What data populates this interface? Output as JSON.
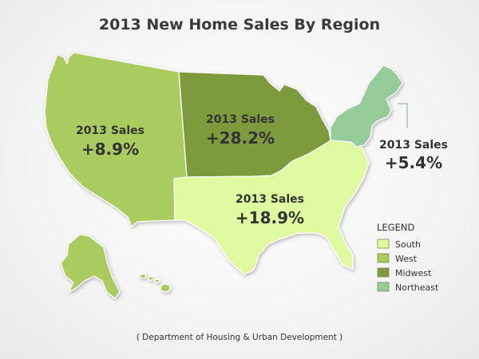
{
  "title": "2013 New Home Sales By Region",
  "source": "( Department of Housing & Urban Development )",
  "legend": {
    "title": "LEGEND",
    "items": [
      {
        "label": "South",
        "color": "#dffa9f"
      },
      {
        "label": "West",
        "color": "#a9cb5e"
      },
      {
        "label": "Midwest",
        "color": "#7d9a3e"
      },
      {
        "label": "Northeast",
        "color": "#97cb99"
      }
    ]
  },
  "regions": [
    {
      "name": "West",
      "caption": "2013 Sales",
      "value": "+8.9%",
      "color": "#a9cb5e"
    },
    {
      "name": "Midwest",
      "caption": "2013 Sales",
      "value": "+28.2%",
      "color": "#7d9a3e"
    },
    {
      "name": "South",
      "caption": "2013 Sales",
      "value": "+18.9%",
      "color": "#dffa9f"
    },
    {
      "name": "Northeast",
      "caption": "2013 Sales",
      "value": "+5.4%",
      "color": "#97cb99"
    }
  ]
}
